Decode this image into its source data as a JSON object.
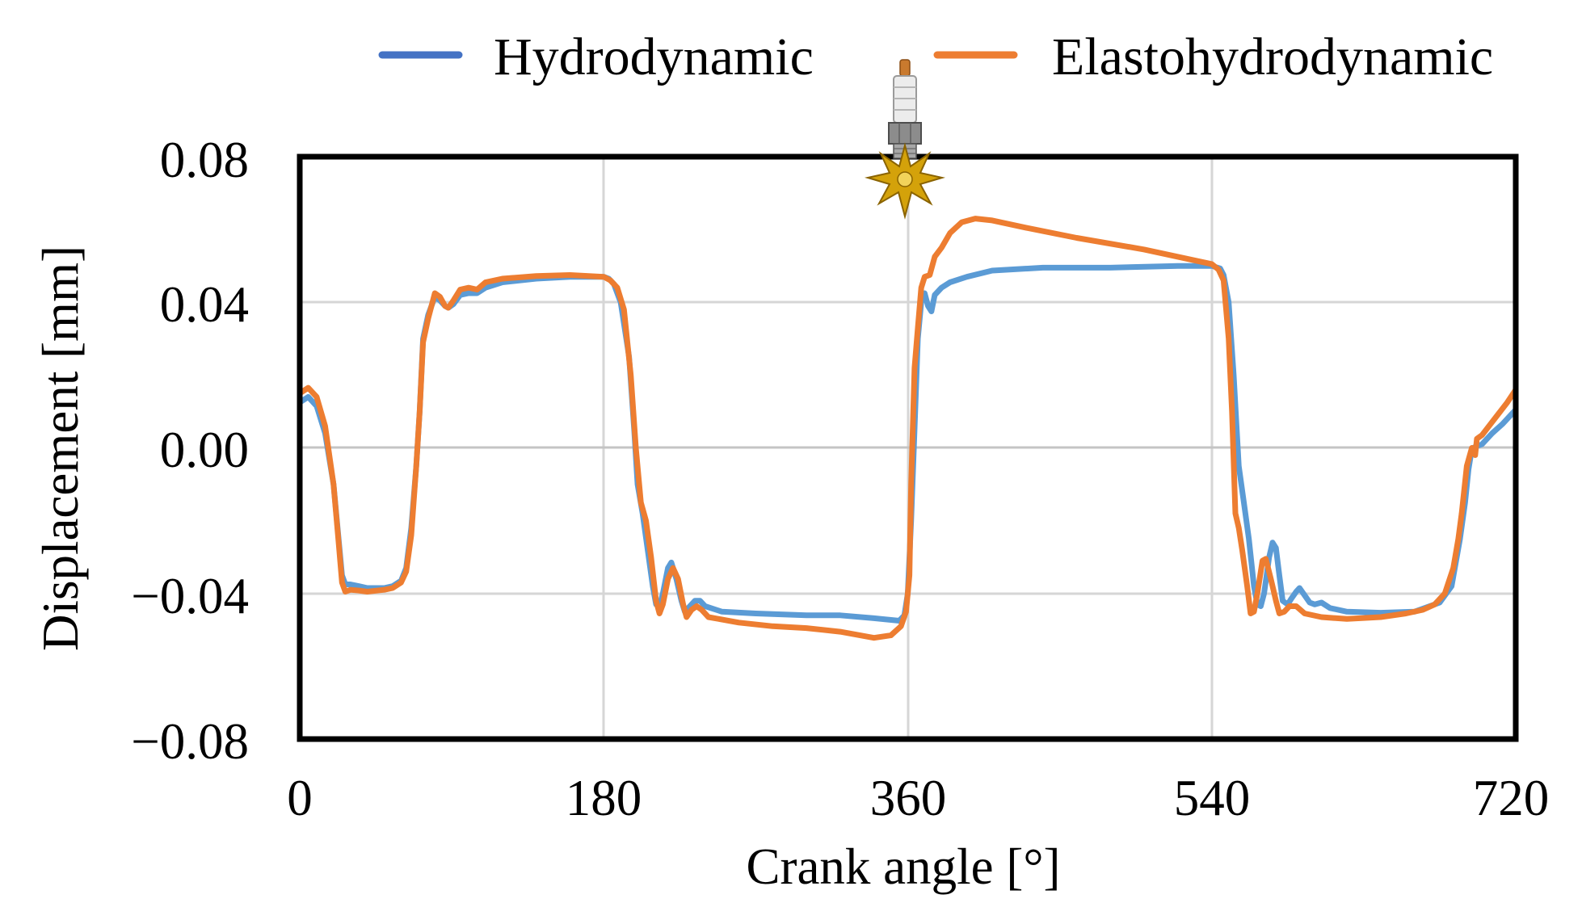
{
  "chart_data": {
    "type": "line",
    "title": "",
    "xlabel": "Crank angle [°]",
    "ylabel": "Displacement [mm]",
    "xlim": [
      0,
      720
    ],
    "ylim": [
      -0.08,
      0.08
    ],
    "x_ticks": [
      0,
      180,
      360,
      540,
      720
    ],
    "x_tick_labels": [
      "0",
      "180",
      "360",
      "540",
      "720"
    ],
    "y_ticks": [
      0.08,
      0.04,
      0.0,
      -0.04,
      -0.08
    ],
    "y_tick_labels": [
      "0.08",
      "0.04",
      "0.00",
      "−0.04",
      "−0.08"
    ],
    "grid": true,
    "legend_position": "top",
    "annotation": "spark-plug-ignition-marker at 360",
    "series": [
      {
        "name": "Hydrodynamic",
        "color": "#5B9BD5",
        "points": [
          [
            0,
            0.0125
          ],
          [
            5,
            0.014
          ],
          [
            10,
            0.0115
          ],
          [
            15,
            0.004
          ],
          [
            20,
            -0.01
          ],
          [
            23,
            -0.025
          ],
          [
            25,
            -0.035
          ],
          [
            27,
            -0.0375
          ],
          [
            30,
            -0.0375
          ],
          [
            35,
            -0.038
          ],
          [
            40,
            -0.0385
          ],
          [
            50,
            -0.0385
          ],
          [
            55,
            -0.038
          ],
          [
            60,
            -0.0365
          ],
          [
            63,
            -0.033
          ],
          [
            66,
            -0.022
          ],
          [
            69,
            -0.005
          ],
          [
            71,
            0.01
          ],
          [
            73,
            0.03
          ],
          [
            76,
            0.0365
          ],
          [
            80,
            0.0415
          ],
          [
            83,
            0.0405
          ],
          [
            86,
            0.039
          ],
          [
            88,
            0.0385
          ],
          [
            91,
            0.0395
          ],
          [
            95,
            0.042
          ],
          [
            100,
            0.0425
          ],
          [
            105,
            0.0425
          ],
          [
            110,
            0.044
          ],
          [
            120,
            0.0455
          ],
          [
            140,
            0.0465
          ],
          [
            160,
            0.047
          ],
          [
            180,
            0.047
          ],
          [
            183,
            0.0465
          ],
          [
            186,
            0.045
          ],
          [
            190,
            0.04
          ],
          [
            195,
            0.025
          ],
          [
            198,
            0.005
          ],
          [
            200,
            -0.01
          ],
          [
            203,
            -0.018
          ],
          [
            206,
            -0.028
          ],
          [
            209,
            -0.038
          ],
          [
            211,
            -0.043
          ],
          [
            213,
            -0.0435
          ],
          [
            215,
            -0.04
          ],
          [
            218,
            -0.033
          ],
          [
            220,
            -0.0315
          ],
          [
            223,
            -0.036
          ],
          [
            226,
            -0.042
          ],
          [
            228,
            -0.045
          ],
          [
            231,
            -0.0435
          ],
          [
            234,
            -0.042
          ],
          [
            237,
            -0.042
          ],
          [
            240,
            -0.0435
          ],
          [
            250,
            -0.045
          ],
          [
            270,
            -0.0455
          ],
          [
            300,
            -0.046
          ],
          [
            320,
            -0.046
          ],
          [
            340,
            -0.0468
          ],
          [
            355,
            -0.0475
          ],
          [
            358,
            -0.046
          ],
          [
            360,
            -0.04
          ],
          [
            362,
            -0.02
          ],
          [
            364,
            0.005
          ],
          [
            366,
            0.03
          ],
          [
            368,
            0.04
          ],
          [
            370,
            0.0425
          ],
          [
            372,
            0.039
          ],
          [
            374,
            0.0375
          ],
          [
            376,
            0.042
          ],
          [
            380,
            0.044
          ],
          [
            385,
            0.0455
          ],
          [
            395,
            0.047
          ],
          [
            410,
            0.0487
          ],
          [
            440,
            0.0495
          ],
          [
            480,
            0.0495
          ],
          [
            520,
            0.05
          ],
          [
            540,
            0.05
          ],
          [
            545,
            0.0493
          ],
          [
            547,
            0.0475
          ],
          [
            550,
            0.04
          ],
          [
            553,
            0.02
          ],
          [
            556,
            -0.005
          ],
          [
            559,
            -0.015
          ],
          [
            562,
            -0.025
          ],
          [
            565,
            -0.038
          ],
          [
            567,
            -0.043
          ],
          [
            569,
            -0.0435
          ],
          [
            571,
            -0.04
          ],
          [
            574,
            -0.03
          ],
          [
            576,
            -0.026
          ],
          [
            578,
            -0.0275
          ],
          [
            580,
            -0.035
          ],
          [
            582,
            -0.042
          ],
          [
            585,
            -0.043
          ],
          [
            587,
            -0.0415
          ],
          [
            590,
            -0.0395
          ],
          [
            592,
            -0.0385
          ],
          [
            595,
            -0.0405
          ],
          [
            598,
            -0.0425
          ],
          [
            601,
            -0.043
          ],
          [
            605,
            -0.0425
          ],
          [
            610,
            -0.044
          ],
          [
            620,
            -0.045
          ],
          [
            640,
            -0.0453
          ],
          [
            660,
            -0.045
          ],
          [
            675,
            -0.0425
          ],
          [
            682,
            -0.038
          ],
          [
            687,
            -0.025
          ],
          [
            690,
            -0.015
          ],
          [
            692,
            -0.006
          ],
          [
            694,
            -0.0002
          ],
          [
            697,
            0.0005
          ],
          [
            700,
            0.001
          ],
          [
            706,
            0.004
          ],
          [
            712,
            0.0065
          ],
          [
            720,
            0.0105
          ]
        ]
      },
      {
        "name": "Elastohydrodynamic",
        "color": "#ED7D31",
        "points": [
          [
            0,
            0.015
          ],
          [
            5,
            0.0165
          ],
          [
            10,
            0.014
          ],
          [
            15,
            0.006
          ],
          [
            20,
            -0.01
          ],
          [
            23,
            -0.026
          ],
          [
            25,
            -0.037
          ],
          [
            27,
            -0.0395
          ],
          [
            30,
            -0.039
          ],
          [
            35,
            -0.0392
          ],
          [
            40,
            -0.0395
          ],
          [
            50,
            -0.039
          ],
          [
            55,
            -0.0385
          ],
          [
            60,
            -0.037
          ],
          [
            63,
            -0.034
          ],
          [
            66,
            -0.024
          ],
          [
            69,
            -0.005
          ],
          [
            71,
            0.01
          ],
          [
            73,
            0.029
          ],
          [
            76,
            0.0355
          ],
          [
            80,
            0.0425
          ],
          [
            83,
            0.0415
          ],
          [
            86,
            0.039
          ],
          [
            88,
            0.0385
          ],
          [
            91,
            0.0405
          ],
          [
            95,
            0.0435
          ],
          [
            100,
            0.044
          ],
          [
            105,
            0.0435
          ],
          [
            110,
            0.0455
          ],
          [
            120,
            0.0465
          ],
          [
            140,
            0.0472
          ],
          [
            160,
            0.0475
          ],
          [
            180,
            0.047
          ],
          [
            184,
            0.046
          ],
          [
            188,
            0.044
          ],
          [
            192,
            0.038
          ],
          [
            196,
            0.02
          ],
          [
            199,
            0.0
          ],
          [
            202,
            -0.015
          ],
          [
            205,
            -0.02
          ],
          [
            208,
            -0.03
          ],
          [
            211,
            -0.042
          ],
          [
            213,
            -0.0455
          ],
          [
            215,
            -0.043
          ],
          [
            218,
            -0.036
          ],
          [
            221,
            -0.033
          ],
          [
            224,
            -0.036
          ],
          [
            227,
            -0.043
          ],
          [
            229,
            -0.0465
          ],
          [
            232,
            -0.0445
          ],
          [
            235,
            -0.0435
          ],
          [
            238,
            -0.0445
          ],
          [
            242,
            -0.0465
          ],
          [
            260,
            -0.048
          ],
          [
            280,
            -0.049
          ],
          [
            300,
            -0.0495
          ],
          [
            320,
            -0.0505
          ],
          [
            340,
            -0.0522
          ],
          [
            350,
            -0.0515
          ],
          [
            356,
            -0.049
          ],
          [
            359,
            -0.045
          ],
          [
            361,
            -0.035
          ],
          [
            362,
            -0.01
          ],
          [
            364,
            0.022
          ],
          [
            366,
            0.033
          ],
          [
            368,
            0.044
          ],
          [
            370,
            0.047
          ],
          [
            373,
            0.0475
          ],
          [
            376,
            0.0525
          ],
          [
            380,
            0.055
          ],
          [
            385,
            0.059
          ],
          [
            392,
            0.062
          ],
          [
            400,
            0.063
          ],
          [
            410,
            0.0625
          ],
          [
            430,
            0.0605
          ],
          [
            460,
            0.0577
          ],
          [
            500,
            0.0545
          ],
          [
            530,
            0.0515
          ],
          [
            540,
            0.0505
          ],
          [
            544,
            0.049
          ],
          [
            547,
            0.046
          ],
          [
            550,
            0.03
          ],
          [
            552,
            0.01
          ],
          [
            554,
            -0.018
          ],
          [
            556,
            -0.022
          ],
          [
            558,
            -0.028
          ],
          [
            561,
            -0.038
          ],
          [
            563,
            -0.0455
          ],
          [
            565,
            -0.045
          ],
          [
            567,
            -0.04
          ],
          [
            570,
            -0.031
          ],
          [
            572,
            -0.0305
          ],
          [
            575,
            -0.036
          ],
          [
            578,
            -0.042
          ],
          [
            580,
            -0.0455
          ],
          [
            583,
            -0.045
          ],
          [
            586,
            -0.0435
          ],
          [
            590,
            -0.0435
          ],
          [
            595,
            -0.0455
          ],
          [
            605,
            -0.0465
          ],
          [
            620,
            -0.047
          ],
          [
            640,
            -0.0465
          ],
          [
            655,
            -0.0455
          ],
          [
            665,
            -0.0445
          ],
          [
            672,
            -0.043
          ],
          [
            678,
            -0.04
          ],
          [
            683,
            -0.033
          ],
          [
            686,
            -0.025
          ],
          [
            688,
            -0.018
          ],
          [
            691,
            -0.005
          ],
          [
            694,
            0.0
          ],
          [
            696,
            -0.002
          ],
          [
            697,
            0.0025
          ],
          [
            700,
            0.0035
          ],
          [
            705,
            0.0065
          ],
          [
            710,
            0.0095
          ],
          [
            715,
            0.0125
          ],
          [
            720,
            0.016
          ]
        ]
      }
    ]
  },
  "legend": {
    "items": [
      {
        "label": "Hydrodynamic",
        "color": "#5B9BD5"
      },
      {
        "label": "Elastohydrodynamic",
        "color": "#ED7D31"
      }
    ]
  }
}
